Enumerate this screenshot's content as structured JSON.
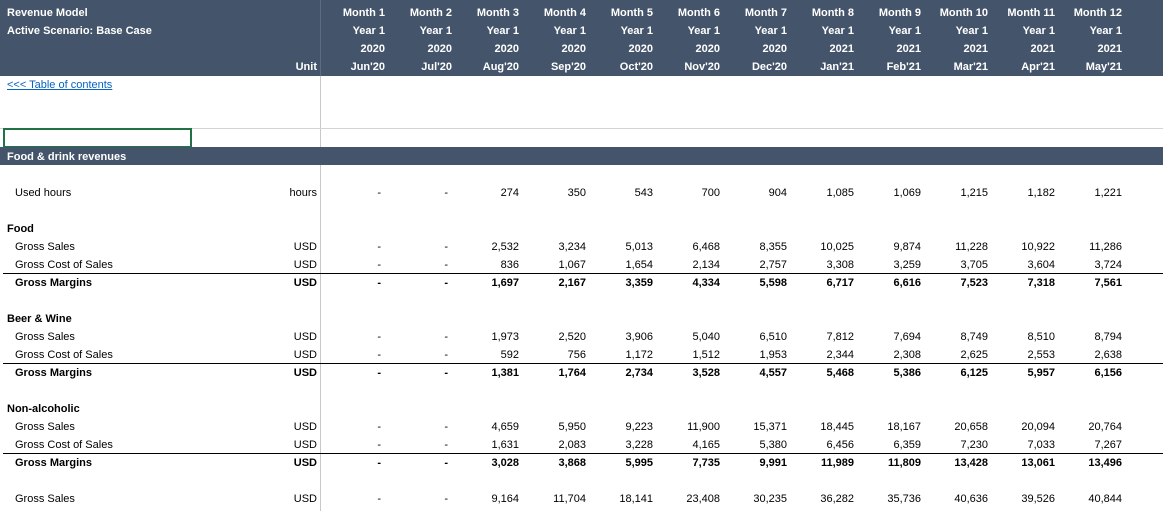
{
  "header": {
    "title": "Revenue Model",
    "scenario": "Active Scenario: Base Case",
    "unit_label": "Unit",
    "months": [
      {
        "month": "Month 1",
        "year_label": "Year 1",
        "year": "2020",
        "period": "Jun'20"
      },
      {
        "month": "Month 2",
        "year_label": "Year 1",
        "year": "2020",
        "period": "Jul'20"
      },
      {
        "month": "Month 3",
        "year_label": "Year 1",
        "year": "2020",
        "period": "Aug'20"
      },
      {
        "month": "Month 4",
        "year_label": "Year 1",
        "year": "2020",
        "period": "Sep'20"
      },
      {
        "month": "Month 5",
        "year_label": "Year 1",
        "year": "2020",
        "period": "Oct'20"
      },
      {
        "month": "Month 6",
        "year_label": "Year 1",
        "year": "2020",
        "period": "Nov'20"
      },
      {
        "month": "Month 7",
        "year_label": "Year 1",
        "year": "2020",
        "period": "Dec'20"
      },
      {
        "month": "Month 8",
        "year_label": "Year 1",
        "year": "2021",
        "period": "Jan'21"
      },
      {
        "month": "Month 9",
        "year_label": "Year 1",
        "year": "2021",
        "period": "Feb'21"
      },
      {
        "month": "Month 10",
        "year_label": "Year 1",
        "year": "2021",
        "period": "Mar'21"
      },
      {
        "month": "Month 11",
        "year_label": "Year 1",
        "year": "2021",
        "period": "Apr'21"
      },
      {
        "month": "Month 12",
        "year_label": "Year 1",
        "year": "2021",
        "period": "May'21"
      }
    ]
  },
  "link": "<<< Table of contents",
  "section": "Food & drink revenues",
  "used_hours": {
    "label": "Used hours",
    "unit": "hours",
    "values": [
      "-",
      "-",
      "274",
      "350",
      "543",
      "700",
      "904",
      "1,085",
      "1,069",
      "1,215",
      "1,182",
      "1,221"
    ]
  },
  "groups": [
    {
      "name": "Food",
      "rows": [
        {
          "label": "Gross Sales",
          "unit": "USD",
          "values": [
            "-",
            "-",
            "2,532",
            "3,234",
            "5,013",
            "6,468",
            "8,355",
            "10,025",
            "9,874",
            "11,228",
            "10,922",
            "11,286"
          ]
        },
        {
          "label": "Gross Cost of Sales",
          "unit": "USD",
          "values": [
            "-",
            "-",
            "836",
            "1,067",
            "1,654",
            "2,134",
            "2,757",
            "3,308",
            "3,259",
            "3,705",
            "3,604",
            "3,724"
          ]
        },
        {
          "label": "Gross Margins",
          "unit": "USD",
          "values": [
            "-",
            "-",
            "1,697",
            "2,167",
            "3,359",
            "4,334",
            "5,598",
            "6,717",
            "6,616",
            "7,523",
            "7,318",
            "7,561"
          ]
        }
      ]
    },
    {
      "name": "Beer & Wine",
      "rows": [
        {
          "label": "Gross Sales",
          "unit": "USD",
          "values": [
            "-",
            "-",
            "1,973",
            "2,520",
            "3,906",
            "5,040",
            "6,510",
            "7,812",
            "7,694",
            "8,749",
            "8,510",
            "8,794"
          ]
        },
        {
          "label": "Gross Cost of Sales",
          "unit": "USD",
          "values": [
            "-",
            "-",
            "592",
            "756",
            "1,172",
            "1,512",
            "1,953",
            "2,344",
            "2,308",
            "2,625",
            "2,553",
            "2,638"
          ]
        },
        {
          "label": "Gross Margins",
          "unit": "USD",
          "values": [
            "-",
            "-",
            "1,381",
            "1,764",
            "2,734",
            "3,528",
            "4,557",
            "5,468",
            "5,386",
            "6,125",
            "5,957",
            "6,156"
          ]
        }
      ]
    },
    {
      "name": "Non-alcoholic",
      "rows": [
        {
          "label": "Gross Sales",
          "unit": "USD",
          "values": [
            "-",
            "-",
            "4,659",
            "5,950",
            "9,223",
            "11,900",
            "15,371",
            "18,445",
            "18,167",
            "20,658",
            "20,094",
            "20,764"
          ]
        },
        {
          "label": "Gross Cost of Sales",
          "unit": "USD",
          "values": [
            "-",
            "-",
            "1,631",
            "2,083",
            "3,228",
            "4,165",
            "5,380",
            "6,456",
            "6,359",
            "7,230",
            "7,033",
            "7,267"
          ]
        },
        {
          "label": "Gross Margins",
          "unit": "USD",
          "values": [
            "-",
            "-",
            "3,028",
            "3,868",
            "5,995",
            "7,735",
            "9,991",
            "11,989",
            "11,809",
            "13,428",
            "13,061",
            "13,496"
          ]
        }
      ]
    }
  ],
  "total": {
    "label": "Gross Sales",
    "unit": "USD",
    "values": [
      "-",
      "-",
      "9,164",
      "11,704",
      "18,141",
      "23,408",
      "30,235",
      "36,282",
      "35,736",
      "40,636",
      "39,526",
      "40,844"
    ]
  }
}
